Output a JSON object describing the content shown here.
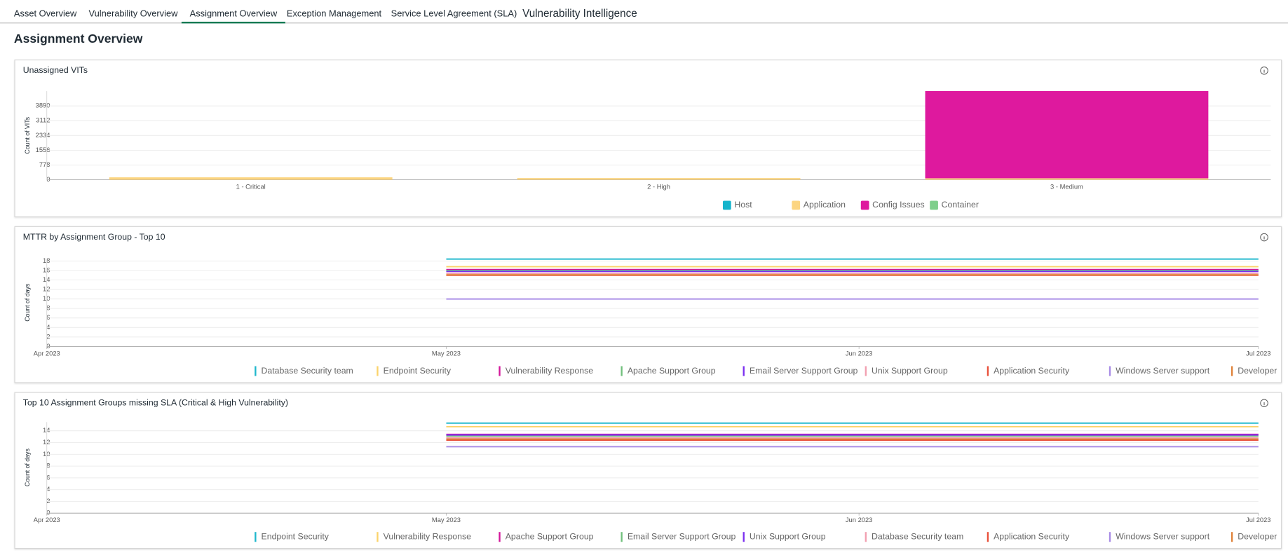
{
  "tabs": [
    "Asset Overview",
    "Vulnerability Overview",
    "Assignment Overview",
    "Exception Management",
    "Service Level Agreement (SLA)",
    "Vulnerability Intelligence"
  ],
  "active_tab": 2,
  "page_title": "Assignment Overview",
  "chart_data": [
    {
      "type": "bar",
      "title": "Unassigned VITs",
      "y_label": "Count of VITs",
      "stacked": true,
      "legend": "bottom",
      "categories": [
        "1 - Critical",
        "2 - High",
        "3 - Medium"
      ],
      "series": [
        {
          "name": "Host",
          "color": "#14b4cc",
          "values": [
            0,
            0,
            0
          ]
        },
        {
          "name": "Application",
          "color": "#fcd581",
          "values": [
            130,
            90,
            80
          ]
        },
        {
          "name": "Config Issues",
          "color": "#de199e",
          "values": [
            0,
            0,
            4590
          ]
        },
        {
          "name": "Container",
          "color": "#7fcf8c",
          "values": [
            0,
            0,
            0
          ]
        }
      ],
      "ylim": [
        0,
        4668
      ],
      "yticks": [
        0,
        778,
        1556,
        2334,
        3112,
        3890
      ],
      "grid": true
    },
    {
      "type": "line",
      "title": "MTTR by Assignment Group - Top 10",
      "y_label": "Count of days",
      "legend": "bottom",
      "x": [
        "2023-05",
        "2023-07"
      ],
      "xlim": [
        "2023-04",
        "2023-07"
      ],
      "xticks": [
        {
          "value": "2023-04",
          "label": "Apr 2023"
        },
        {
          "value": "2023-05",
          "label": "May 2023"
        },
        {
          "value": "2023-06",
          "label": "Jun 2023"
        },
        {
          "value": "2023-07",
          "label": "Jul 2023"
        }
      ],
      "series": [
        {
          "name": "Database Security team",
          "color": "#1fb8cd",
          "values": [
            18.4,
            18.4
          ]
        },
        {
          "name": "Endpoint Security",
          "color": "#fbd36b",
          "values": [
            16.8,
            16.8
          ]
        },
        {
          "name": "Vulnerability Response",
          "color": "#d4169a",
          "values": [
            16.2,
            16.2
          ]
        },
        {
          "name": "Apache Support Group",
          "color": "#71c07c",
          "values": [
            16,
            16
          ]
        },
        {
          "name": "Email Server Support Group",
          "color": "#7b2ff0",
          "values": [
            15.8,
            15.8
          ]
        },
        {
          "name": "Unix Support Group",
          "color": "#f29fb0",
          "values": [
            15.4,
            15.4
          ]
        },
        {
          "name": "Application Security",
          "color": "#e9503a",
          "values": [
            15,
            15
          ]
        },
        {
          "name": "Windows Server support",
          "color": "#a88be6",
          "values": [
            10,
            10
          ]
        },
        {
          "name": "Developer",
          "color": "#e0823a",
          "values": [
            15.1,
            15.1
          ]
        }
      ],
      "ylim": [
        0,
        18.5
      ],
      "yticks": [
        0,
        2,
        4,
        6,
        8,
        10,
        12,
        14,
        16,
        18
      ],
      "grid": true
    },
    {
      "type": "line",
      "title": "Top 10 Assignment Groups missing SLA (Critical & High Vulnerability)",
      "y_label": "Count of days",
      "legend": "bottom",
      "x": [
        "2023-05",
        "2023-07"
      ],
      "xlim": [
        "2023-04",
        "2023-07"
      ],
      "xticks": [
        {
          "value": "2023-04",
          "label": "Apr 2023"
        },
        {
          "value": "2023-05",
          "label": "May 2023"
        },
        {
          "value": "2023-06",
          "label": "Jun 2023"
        },
        {
          "value": "2023-07",
          "label": "Jul 2023"
        }
      ],
      "series": [
        {
          "name": "Endpoint Security",
          "color": "#1fb8cd",
          "values": [
            15.3,
            15.3
          ]
        },
        {
          "name": "Vulnerability Response",
          "color": "#fbd36b",
          "values": [
            14.7,
            14.7
          ]
        },
        {
          "name": "Apache Support Group",
          "color": "#d4169a",
          "values": [
            13.4,
            13.4
          ]
        },
        {
          "name": "Email Server Support Group",
          "color": "#71c07c",
          "values": [
            13.1,
            13.1
          ]
        },
        {
          "name": "Unix Support Group",
          "color": "#7b2ff0",
          "values": [
            13.3,
            13.3
          ]
        },
        {
          "name": "Database Security team",
          "color": "#f29fb0",
          "values": [
            12.8,
            12.8
          ]
        },
        {
          "name": "Application Security",
          "color": "#e9503a",
          "values": [
            12.4,
            12.4
          ]
        },
        {
          "name": "Windows Server support",
          "color": "#a88be6",
          "values": [
            11.3,
            11.3
          ]
        },
        {
          "name": "Developer",
          "color": "#e0823a",
          "values": [
            12.6,
            12.6
          ]
        }
      ],
      "ylim": [
        0,
        15.5
      ],
      "yticks": [
        0,
        2,
        4,
        6,
        8,
        10,
        12,
        14
      ],
      "grid": true
    }
  ]
}
